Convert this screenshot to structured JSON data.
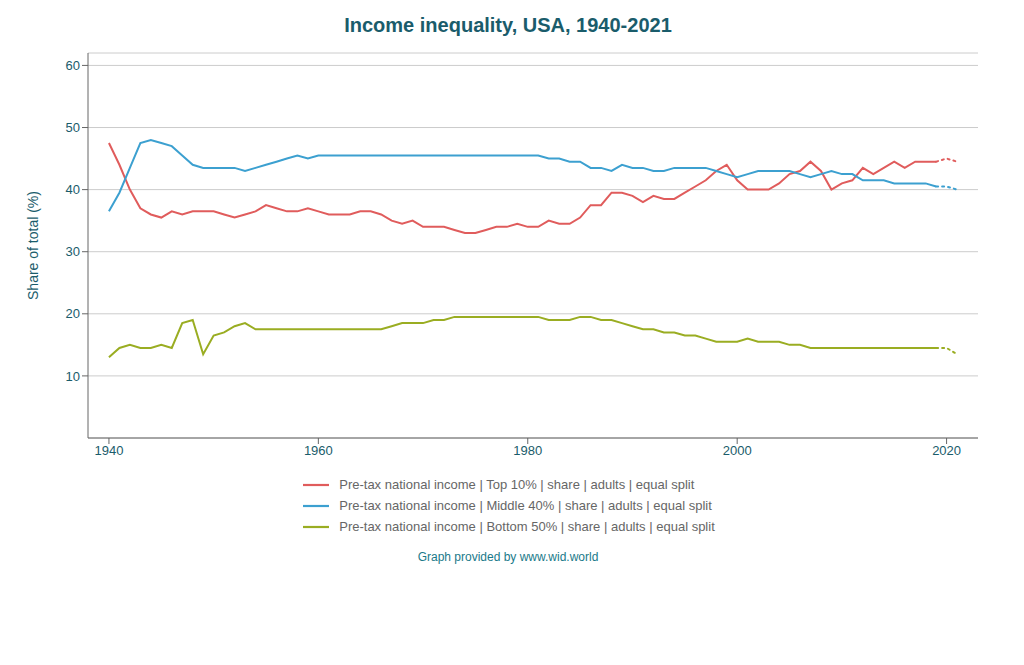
{
  "chart_data": {
    "type": "line",
    "title": "Income inequality, USA, 1940-2021",
    "y_label": "Share of total (%)",
    "annotations": [
      "Graph provided by www.wid.world"
    ],
    "x": [
      1940,
      1941,
      1942,
      1943,
      1944,
      1945,
      1946,
      1947,
      1948,
      1949,
      1950,
      1951,
      1952,
      1953,
      1954,
      1955,
      1956,
      1957,
      1958,
      1959,
      1960,
      1961,
      1962,
      1963,
      1964,
      1965,
      1966,
      1967,
      1968,
      1969,
      1970,
      1971,
      1972,
      1973,
      1974,
      1975,
      1976,
      1977,
      1978,
      1979,
      1980,
      1981,
      1982,
      1983,
      1984,
      1985,
      1986,
      1987,
      1988,
      1989,
      1990,
      1991,
      1992,
      1993,
      1994,
      1995,
      1996,
      1997,
      1998,
      1999,
      2000,
      2001,
      2002,
      2003,
      2004,
      2005,
      2006,
      2007,
      2008,
      2009,
      2010,
      2011,
      2012,
      2013,
      2014,
      2015,
      2016,
      2017,
      2018,
      2019,
      2020,
      2021
    ],
    "series": [
      {
        "name": "Pre-tax national income | Top 10% | share | adults | equal split",
        "color": "#e05c5c",
        "values": [
          47.5,
          44.0,
          40.0,
          37.0,
          36.0,
          35.5,
          36.5,
          36.0,
          36.5,
          36.5,
          36.5,
          36.0,
          35.5,
          36.0,
          36.5,
          37.5,
          37.0,
          36.5,
          36.5,
          37.0,
          36.5,
          36.0,
          36.0,
          36.0,
          36.5,
          36.5,
          36.0,
          35.0,
          34.5,
          35.0,
          34.0,
          34.0,
          34.0,
          33.5,
          33.0,
          33.0,
          33.5,
          34.0,
          34.0,
          34.5,
          34.0,
          34.0,
          35.0,
          34.5,
          34.5,
          35.5,
          37.5,
          37.5,
          39.5,
          39.5,
          39.0,
          38.0,
          39.0,
          38.5,
          38.5,
          39.5,
          40.5,
          41.5,
          43.0,
          44.0,
          41.5,
          40.0,
          40.0,
          40.0,
          41.0,
          42.5,
          43.0,
          44.5,
          43.0,
          40.0,
          41.0,
          41.5,
          43.5,
          42.5,
          43.5,
          44.5,
          43.5,
          44.5,
          44.5,
          44.5,
          45.0,
          44.5
        ]
      },
      {
        "name": "Pre-tax national income | Middle 40% | share | adults | equal split",
        "color": "#3ca0d0",
        "values": [
          36.5,
          39.5,
          43.5,
          47.5,
          48.0,
          47.5,
          47.0,
          45.5,
          44.0,
          43.5,
          43.5,
          43.5,
          43.5,
          43.0,
          43.5,
          44.0,
          44.5,
          45.0,
          45.5,
          45.0,
          45.5,
          45.5,
          45.5,
          45.5,
          45.5,
          45.5,
          45.5,
          45.5,
          45.5,
          45.5,
          45.5,
          45.5,
          45.5,
          45.5,
          45.5,
          45.5,
          45.5,
          45.5,
          45.5,
          45.5,
          45.5,
          45.5,
          45.0,
          45.0,
          44.5,
          44.5,
          43.5,
          43.5,
          43.0,
          44.0,
          43.5,
          43.5,
          43.0,
          43.0,
          43.5,
          43.5,
          43.5,
          43.5,
          43.0,
          42.5,
          42.0,
          42.5,
          43.0,
          43.0,
          43.0,
          43.0,
          42.5,
          42.0,
          42.5,
          43.0,
          42.5,
          42.5,
          41.5,
          41.5,
          41.5,
          41.0,
          41.0,
          41.0,
          41.0,
          40.5,
          40.5,
          40.0
        ]
      },
      {
        "name": "Pre-tax national income | Bottom 50% | share | adults | equal split",
        "color": "#9aad22",
        "values": [
          13.0,
          14.5,
          15.0,
          14.5,
          14.5,
          15.0,
          14.5,
          18.5,
          19.0,
          13.5,
          16.5,
          17.0,
          18.0,
          18.5,
          17.5,
          17.5,
          17.5,
          17.5,
          17.5,
          17.5,
          17.5,
          17.5,
          17.5,
          17.5,
          17.5,
          17.5,
          17.5,
          18.0,
          18.5,
          18.5,
          18.5,
          19.0,
          19.0,
          19.5,
          19.5,
          19.5,
          19.5,
          19.5,
          19.5,
          19.5,
          19.5,
          19.5,
          19.0,
          19.0,
          19.0,
          19.5,
          19.5,
          19.0,
          19.0,
          18.5,
          18.0,
          17.5,
          17.5,
          17.0,
          17.0,
          16.5,
          16.5,
          16.0,
          15.5,
          15.5,
          15.5,
          16.0,
          15.5,
          15.5,
          15.5,
          15.0,
          15.0,
          14.5,
          14.5,
          14.5,
          14.5,
          14.5,
          14.5,
          14.5,
          14.5,
          14.5,
          14.5,
          14.5,
          14.5,
          14.5,
          14.5,
          13.5
        ]
      }
    ],
    "xlim": [
      1938,
      2023
    ],
    "xticks": [
      1940,
      1960,
      1980,
      2000,
      2020
    ],
    "ylim": [
      0,
      62
    ],
    "yticks": [
      10,
      20,
      30,
      40,
      50,
      60
    ],
    "grid": true,
    "legend": "bottom"
  }
}
